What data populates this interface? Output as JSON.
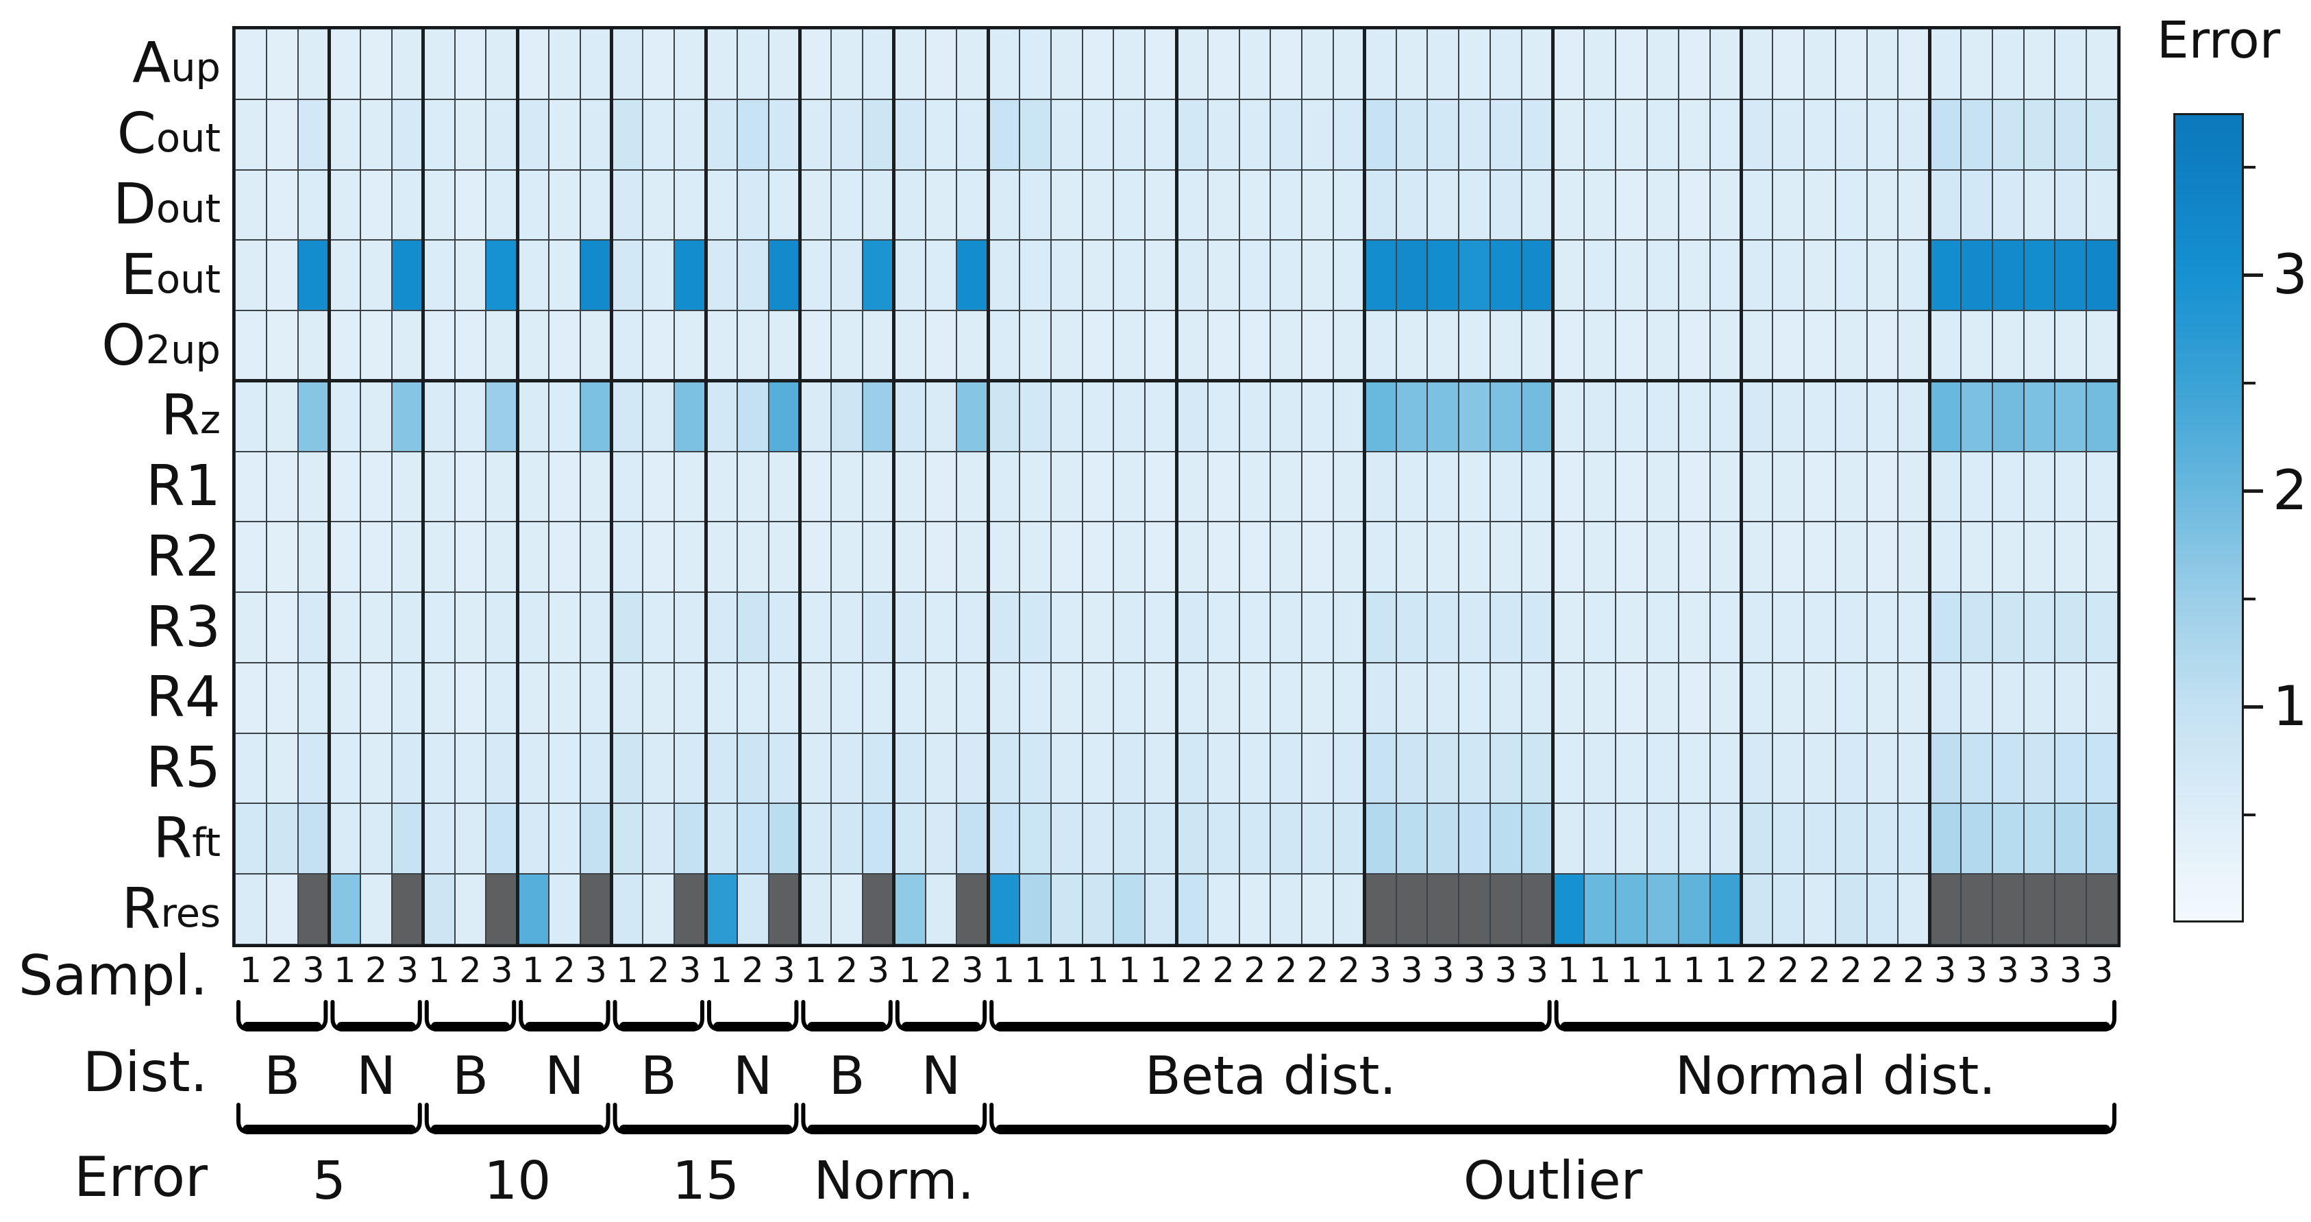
{
  "axis_labels": {
    "sample": "Sampl.",
    "dist": "Dist.",
    "error": "Error"
  },
  "rows_display": [
    {
      "main": "A",
      "sub": "up"
    },
    {
      "main": "C",
      "sub": "out"
    },
    {
      "main": "D",
      "sub": "out"
    },
    {
      "main": "E",
      "sub": "out"
    },
    {
      "main": "O",
      "sub": "2up"
    },
    {
      "main": "R",
      "sub": "z"
    },
    {
      "main": "R1",
      "sub": ""
    },
    {
      "main": "R2",
      "sub": ""
    },
    {
      "main": "R3",
      "sub": ""
    },
    {
      "main": "R4",
      "sub": ""
    },
    {
      "main": "R5",
      "sub": ""
    },
    {
      "main": "R",
      "sub": "ft"
    },
    {
      "main": "R",
      "sub": "res"
    }
  ],
  "colors": {
    "colormap_stops": [
      [
        0,
        "#f3f9fd"
      ],
      [
        0.5,
        "#ddedf8"
      ],
      [
        1,
        "#c3e1f2"
      ],
      [
        1.5,
        "#9bcee8"
      ],
      [
        2,
        "#69b8de"
      ],
      [
        2.5,
        "#3aa2d5"
      ],
      [
        3,
        "#1691d1"
      ],
      [
        3.5,
        "#0e7fc2"
      ],
      [
        3.75,
        "#0c79bb"
      ]
    ],
    "missing": "#5d5f61",
    "gridline": "#3a4147",
    "separator": "#1b1e21",
    "frame": "#15181a"
  },
  "chart_data": {
    "type": "heatmap",
    "colorbar_label": "Error",
    "value_range": [
      0,
      3.75
    ],
    "colorbar_major_ticks": [
      {
        "value": 3,
        "label": "3"
      },
      {
        "value": 2,
        "label": "2"
      },
      {
        "value": 1,
        "label": "1"
      }
    ],
    "colorbar_minor_ticks": [
      3.5,
      2.5,
      1.5,
      0.5
    ],
    "rows": [
      "Aup",
      "Cout",
      "Dout",
      "Eout",
      "O2up",
      "Rz",
      "R1",
      "R2",
      "R3",
      "R4",
      "R5",
      "Rft",
      "Rres"
    ],
    "sample_labels": [
      "1",
      "2",
      "3",
      "1",
      "2",
      "3",
      "1",
      "2",
      "3",
      "1",
      "2",
      "3",
      "1",
      "2",
      "3",
      "1",
      "2",
      "3",
      "1",
      "2",
      "3",
      "1",
      "2",
      "3",
      "1",
      "1",
      "1",
      "1",
      "1",
      "1",
      "2",
      "2",
      "2",
      "2",
      "2",
      "2",
      "3",
      "3",
      "3",
      "3",
      "3",
      "3",
      "1",
      "1",
      "1",
      "1",
      "1",
      "1",
      "2",
      "2",
      "2",
      "2",
      "2",
      "2",
      "3",
      "3",
      "3",
      "3",
      "3",
      "3"
    ],
    "dist_groups": [
      {
        "label": "B",
        "start": 1,
        "end": 3
      },
      {
        "label": "N",
        "start": 4,
        "end": 6
      },
      {
        "label": "B",
        "start": 7,
        "end": 9
      },
      {
        "label": "N",
        "start": 10,
        "end": 12
      },
      {
        "label": "B",
        "start": 13,
        "end": 15
      },
      {
        "label": "N",
        "start": 16,
        "end": 18
      },
      {
        "label": "B",
        "start": 19,
        "end": 21
      },
      {
        "label": "N",
        "start": 22,
        "end": 24
      },
      {
        "label": "Beta dist.",
        "start": 25,
        "end": 42
      },
      {
        "label": "Normal dist.",
        "start": 43,
        "end": 60
      }
    ],
    "error_groups": [
      {
        "label": "5",
        "start": 1,
        "end": 6
      },
      {
        "label": "10",
        "start": 7,
        "end": 12
      },
      {
        "label": "15",
        "start": 13,
        "end": 18
      },
      {
        "label": "Norm.",
        "start": 19,
        "end": 24
      },
      {
        "label": "Outlier",
        "start": 25,
        "end": 60
      }
    ],
    "missing_value_meaning": "gray cell (no value)",
    "matrix": [
      [
        0.45,
        0.4,
        0.5,
        0.45,
        0.4,
        0.5,
        0.5,
        0.45,
        0.5,
        0.45,
        0.5,
        0.55,
        0.6,
        0.45,
        0.5,
        0.5,
        0.55,
        0.5,
        0.45,
        0.5,
        0.55,
        0.5,
        0.45,
        0.5,
        0.55,
        0.55,
        0.5,
        0.45,
        0.5,
        0.45,
        0.5,
        0.45,
        0.5,
        0.45,
        0.5,
        0.5,
        0.55,
        0.5,
        0.55,
        0.5,
        0.55,
        0.5,
        0.45,
        0.5,
        0.45,
        0.5,
        0.45,
        0.5,
        0.5,
        0.45,
        0.5,
        0.45,
        0.5,
        0.45,
        0.55,
        0.5,
        0.55,
        0.5,
        0.55,
        0.5
      ],
      [
        0.5,
        0.45,
        0.7,
        0.5,
        0.5,
        0.65,
        0.55,
        0.5,
        0.6,
        0.65,
        0.5,
        0.6,
        0.8,
        0.55,
        0.6,
        0.7,
        0.9,
        0.7,
        0.6,
        0.65,
        0.8,
        0.7,
        0.55,
        0.6,
        0.9,
        0.85,
        0.6,
        0.55,
        0.6,
        0.55,
        0.7,
        0.6,
        0.6,
        0.65,
        0.6,
        0.65,
        0.95,
        0.75,
        0.7,
        0.65,
        0.7,
        0.7,
        0.5,
        0.55,
        0.5,
        0.55,
        0.5,
        0.55,
        0.65,
        0.6,
        0.55,
        0.6,
        0.55,
        0.6,
        1.0,
        0.95,
        0.85,
        0.8,
        0.85,
        0.8
      ],
      [
        0.5,
        0.45,
        0.55,
        0.5,
        0.45,
        0.55,
        0.5,
        0.45,
        0.55,
        0.55,
        0.5,
        0.55,
        0.65,
        0.5,
        0.55,
        0.55,
        0.65,
        0.55,
        0.5,
        0.55,
        0.6,
        0.6,
        0.5,
        0.55,
        0.6,
        0.6,
        0.5,
        0.5,
        0.55,
        0.5,
        0.55,
        0.5,
        0.5,
        0.55,
        0.5,
        0.55,
        0.7,
        0.65,
        0.6,
        0.6,
        0.65,
        0.6,
        0.5,
        0.5,
        0.45,
        0.5,
        0.45,
        0.5,
        0.55,
        0.5,
        0.5,
        0.55,
        0.5,
        0.5,
        0.7,
        0.7,
        0.65,
        0.6,
        0.65,
        0.6
      ],
      [
        0.5,
        0.45,
        3.1,
        0.5,
        0.5,
        3.1,
        0.55,
        0.5,
        3.0,
        0.55,
        0.5,
        3.2,
        0.7,
        0.55,
        3.1,
        0.65,
        0.7,
        3.2,
        0.55,
        0.6,
        2.9,
        0.6,
        0.55,
        3.1,
        0.6,
        0.6,
        0.55,
        0.5,
        0.55,
        0.5,
        0.6,
        0.5,
        0.55,
        0.55,
        0.5,
        0.55,
        3.1,
        3.2,
        3.1,
        2.9,
        3.1,
        3.2,
        0.5,
        0.55,
        0.5,
        0.55,
        0.5,
        0.55,
        0.6,
        0.55,
        0.5,
        0.55,
        0.5,
        0.55,
        3.1,
        3.2,
        3.2,
        3.1,
        3.2,
        3.3
      ],
      [
        0.45,
        0.4,
        0.5,
        0.45,
        0.4,
        0.5,
        0.45,
        0.45,
        0.5,
        0.5,
        0.45,
        0.5,
        0.55,
        0.45,
        0.5,
        0.5,
        0.5,
        0.5,
        0.45,
        0.5,
        0.5,
        0.5,
        0.45,
        0.5,
        0.55,
        0.5,
        0.5,
        0.45,
        0.5,
        0.45,
        0.5,
        0.45,
        0.45,
        0.5,
        0.45,
        0.5,
        0.55,
        0.5,
        0.5,
        0.5,
        0.5,
        0.5,
        0.45,
        0.5,
        0.45,
        0.5,
        0.45,
        0.5,
        0.5,
        0.45,
        0.45,
        0.5,
        0.45,
        0.5,
        0.55,
        0.5,
        0.5,
        0.5,
        0.5,
        0.5
      ],
      [
        0.55,
        0.5,
        1.7,
        0.55,
        0.5,
        1.7,
        0.6,
        0.55,
        1.5,
        0.6,
        0.55,
        1.8,
        0.7,
        0.6,
        1.8,
        0.7,
        1.0,
        2.2,
        0.6,
        0.8,
        1.5,
        0.7,
        0.6,
        1.7,
        0.8,
        0.7,
        0.6,
        0.55,
        0.6,
        0.55,
        0.65,
        0.55,
        0.6,
        0.6,
        0.55,
        0.6,
        2.0,
        1.8,
        1.8,
        1.7,
        1.8,
        1.9,
        0.55,
        0.6,
        0.55,
        0.6,
        0.55,
        0.6,
        0.65,
        0.6,
        0.55,
        0.6,
        0.55,
        0.6,
        2.0,
        1.8,
        1.9,
        1.8,
        1.8,
        1.9
      ],
      [
        0.45,
        0.45,
        0.5,
        0.45,
        0.45,
        0.5,
        0.5,
        0.45,
        0.5,
        0.5,
        0.45,
        0.5,
        0.55,
        0.45,
        0.5,
        0.5,
        0.5,
        0.5,
        0.45,
        0.5,
        0.5,
        0.5,
        0.45,
        0.5,
        0.55,
        0.5,
        0.5,
        0.45,
        0.5,
        0.45,
        0.5,
        0.45,
        0.5,
        0.5,
        0.45,
        0.5,
        0.6,
        0.55,
        0.55,
        0.5,
        0.55,
        0.55,
        0.45,
        0.5,
        0.45,
        0.5,
        0.45,
        0.5,
        0.5,
        0.5,
        0.45,
        0.5,
        0.45,
        0.5,
        0.6,
        0.55,
        0.55,
        0.55,
        0.55,
        0.55
      ],
      [
        0.45,
        0.4,
        0.5,
        0.45,
        0.45,
        0.5,
        0.5,
        0.45,
        0.5,
        0.5,
        0.45,
        0.5,
        0.55,
        0.45,
        0.5,
        0.5,
        0.5,
        0.5,
        0.45,
        0.5,
        0.5,
        0.5,
        0.45,
        0.5,
        0.5,
        0.5,
        0.45,
        0.45,
        0.5,
        0.45,
        0.5,
        0.45,
        0.45,
        0.5,
        0.45,
        0.5,
        0.55,
        0.5,
        0.5,
        0.5,
        0.5,
        0.5,
        0.45,
        0.5,
        0.45,
        0.5,
        0.45,
        0.5,
        0.5,
        0.45,
        0.45,
        0.5,
        0.45,
        0.5,
        0.55,
        0.5,
        0.5,
        0.5,
        0.5,
        0.5
      ],
      [
        0.5,
        0.45,
        0.65,
        0.5,
        0.5,
        0.6,
        0.55,
        0.5,
        0.6,
        0.6,
        0.5,
        0.6,
        0.8,
        0.55,
        0.6,
        0.65,
        0.85,
        0.65,
        0.55,
        0.6,
        0.7,
        0.65,
        0.55,
        0.6,
        0.7,
        0.7,
        0.55,
        0.5,
        0.6,
        0.55,
        0.65,
        0.55,
        0.55,
        0.6,
        0.55,
        0.6,
        0.85,
        0.75,
        0.7,
        0.65,
        0.7,
        0.7,
        0.5,
        0.55,
        0.5,
        0.55,
        0.5,
        0.55,
        0.6,
        0.55,
        0.55,
        0.6,
        0.55,
        0.55,
        0.9,
        0.85,
        0.8,
        0.75,
        0.8,
        0.75
      ],
      [
        0.45,
        0.45,
        0.55,
        0.5,
        0.45,
        0.55,
        0.5,
        0.45,
        0.55,
        0.5,
        0.5,
        0.55,
        0.6,
        0.5,
        0.55,
        0.55,
        0.55,
        0.55,
        0.5,
        0.55,
        0.55,
        0.55,
        0.5,
        0.55,
        0.6,
        0.55,
        0.5,
        0.5,
        0.55,
        0.5,
        0.55,
        0.5,
        0.5,
        0.55,
        0.5,
        0.55,
        0.65,
        0.6,
        0.6,
        0.55,
        0.6,
        0.6,
        0.5,
        0.5,
        0.45,
        0.5,
        0.45,
        0.5,
        0.55,
        0.5,
        0.5,
        0.55,
        0.5,
        0.5,
        0.65,
        0.6,
        0.6,
        0.6,
        0.6,
        0.6
      ],
      [
        0.55,
        0.5,
        0.7,
        0.55,
        0.5,
        0.65,
        0.6,
        0.55,
        0.65,
        0.6,
        0.55,
        0.65,
        0.8,
        0.6,
        0.65,
        0.7,
        0.85,
        0.7,
        0.6,
        0.65,
        0.75,
        0.7,
        0.6,
        0.65,
        0.75,
        0.7,
        0.6,
        0.55,
        0.65,
        0.6,
        0.7,
        0.6,
        0.6,
        0.65,
        0.6,
        0.65,
        0.95,
        0.85,
        0.8,
        0.75,
        0.8,
        0.8,
        0.55,
        0.6,
        0.55,
        0.6,
        0.55,
        0.6,
        0.65,
        0.6,
        0.6,
        0.65,
        0.6,
        0.6,
        1.05,
        0.95,
        0.9,
        0.85,
        0.9,
        0.9
      ],
      [
        0.7,
        0.8,
        1.0,
        0.6,
        0.6,
        0.95,
        0.65,
        0.6,
        0.9,
        0.65,
        0.6,
        1.0,
        0.8,
        0.65,
        1.0,
        0.75,
        0.9,
        1.1,
        0.65,
        0.75,
        0.9,
        0.75,
        0.65,
        1.0,
        0.9,
        0.85,
        0.7,
        0.65,
        0.75,
        0.7,
        0.8,
        0.7,
        0.7,
        0.75,
        0.7,
        0.75,
        1.2,
        1.1,
        1.05,
        1.0,
        1.1,
        1.1,
        0.6,
        0.65,
        0.6,
        0.65,
        0.6,
        0.65,
        0.8,
        0.7,
        0.7,
        0.75,
        0.7,
        0.7,
        1.3,
        1.2,
        1.15,
        1.1,
        1.2,
        1.2
      ],
      [
        0.6,
        0.45,
        null,
        1.7,
        0.5,
        null,
        0.8,
        0.5,
        null,
        2.2,
        0.6,
        null,
        0.7,
        0.5,
        null,
        2.7,
        0.7,
        null,
        0.6,
        0.5,
        null,
        1.6,
        0.6,
        null,
        2.9,
        1.3,
        0.8,
        0.8,
        1.1,
        0.7,
        0.9,
        0.55,
        0.5,
        0.6,
        0.5,
        0.6,
        null,
        null,
        null,
        null,
        null,
        null,
        3.0,
        2.0,
        2.0,
        1.9,
        2.1,
        2.5,
        0.8,
        0.7,
        0.6,
        0.8,
        0.7,
        0.6,
        null,
        null,
        null,
        null,
        null,
        null
      ]
    ]
  }
}
